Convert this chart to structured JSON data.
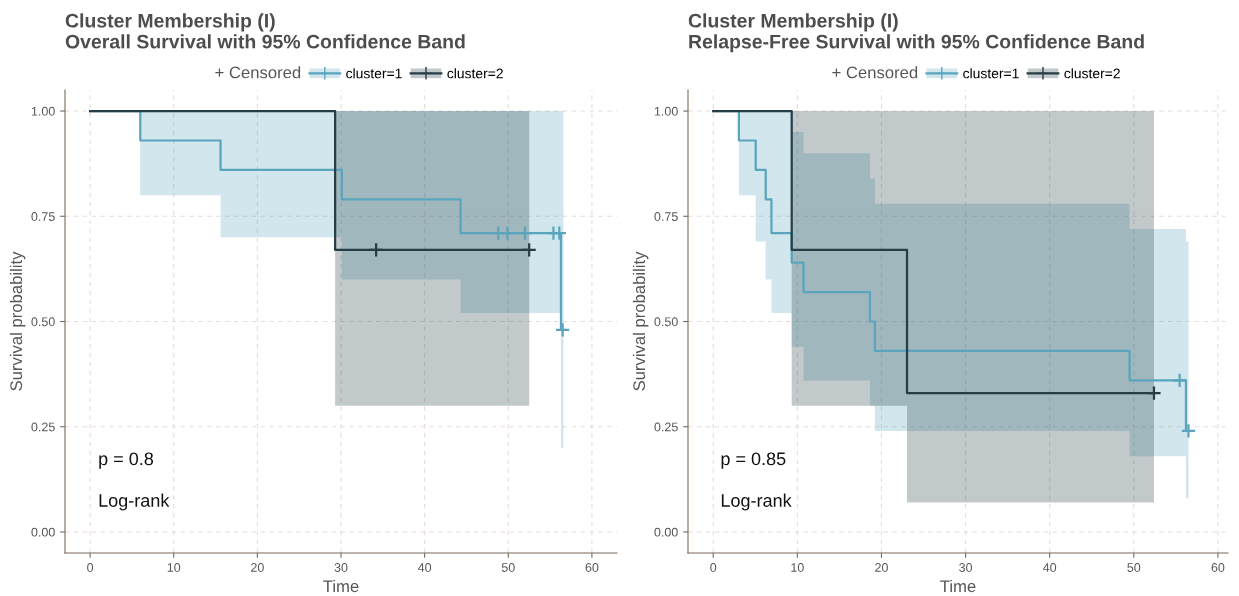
{
  "chart_data": [
    {
      "type": "step",
      "title": "Cluster Membership (I)\nOverall Survival with 95% Confidence Band",
      "xlabel": "Time",
      "ylabel": "Survival probability",
      "legend_title": "+ Censored",
      "legend": "top",
      "grid": true,
      "xlim": [
        -3,
        63
      ],
      "ylim": [
        -0.05,
        1.05
      ],
      "xticks": [
        0,
        10,
        20,
        30,
        40,
        50,
        60
      ],
      "yticks": [
        {
          "value": 0,
          "label": "0.00"
        },
        {
          "value": 0.25,
          "label": "0.25"
        },
        {
          "value": 0.5,
          "label": "0.50"
        },
        {
          "value": 0.75,
          "label": "0.75"
        },
        {
          "value": 1,
          "label": "1.00"
        }
      ],
      "annotations": [
        "p = 0.8",
        "Log-rank"
      ],
      "series": [
        {
          "name": "cluster=1",
          "color": "#5aa5bd",
          "marker": "none",
          "x": [
            0,
            6.0,
            15.6,
            30.1,
            44.3,
            56.3,
            56.6
          ],
          "values": [
            1,
            0.93,
            0.86,
            0.79,
            0.71,
            0.48,
            0.48
          ],
          "lower": [
            1,
            0.8,
            0.7,
            0.6,
            0.52,
            0.2,
            0.2
          ],
          "upper": [
            1,
            1,
            1,
            1,
            1,
            1,
            1
          ]
        },
        {
          "name": "cluster=2",
          "color": "#253d45",
          "marker": "none",
          "x": [
            0,
            29.3,
            52.5
          ],
          "values": [
            1,
            0.67,
            0.67
          ],
          "lower": [
            1,
            0.3,
            0.3
          ],
          "upper": [
            1,
            1,
            1
          ]
        },
        {
          "type": "scatter",
          "color": "#5aa5bd",
          "marker": "cross",
          "x": [
            48.8,
            49.9,
            52.0,
            55.4,
            56.1,
            56.5
          ],
          "values": [
            0.71,
            0.71,
            0.71,
            0.71,
            0.71,
            0.48
          ]
        },
        {
          "type": "scatter",
          "color": "#253d45",
          "marker": "cross",
          "x": [
            34.2,
            52.5
          ],
          "values": [
            0.67,
            0.67
          ]
        }
      ]
    },
    {
      "type": "step",
      "title": "Cluster Membership (I)\nRelapse-Free Survival with 95% Confidence Band",
      "xlabel": "Time",
      "ylabel": "Survival probability",
      "legend_title": "+ Censored",
      "legend": "top",
      "grid": true,
      "xlim": [
        -3,
        61.2
      ],
      "ylim": [
        -0.05,
        1.05
      ],
      "xticks": [
        0,
        10,
        20,
        30,
        40,
        50,
        60
      ],
      "yticks": [
        {
          "value": 0,
          "label": "0.00"
        },
        {
          "value": 0.25,
          "label": "0.25"
        },
        {
          "value": 0.5,
          "label": "0.50"
        },
        {
          "value": 0.75,
          "label": "0.75"
        },
        {
          "value": 1,
          "label": "1.00"
        }
      ],
      "annotations": [
        "p = 0.85",
        "Log-rank"
      ],
      "series": [
        {
          "name": "cluster=1",
          "color": "#5aa5bd",
          "marker": "none",
          "x": [
            0,
            3.05,
            5.05,
            6.24,
            6.92,
            9.33,
            10.73,
            18.63,
            19.22,
            49.5,
            56.2,
            56.5
          ],
          "values": [
            1,
            0.93,
            0.86,
            0.79,
            0.71,
            0.64,
            0.57,
            0.5,
            0.43,
            0.36,
            0.24,
            0.24
          ],
          "lower": [
            1,
            0.8,
            0.69,
            0.6,
            0.52,
            0.44,
            0.36,
            0.3,
            0.24,
            0.18,
            0.08,
            0.08
          ],
          "upper": [
            1,
            1,
            1,
            1,
            1,
            0.95,
            0.9,
            0.84,
            0.78,
            0.72,
            0.69,
            0.69
          ]
        },
        {
          "name": "cluster=2",
          "color": "#253d45",
          "marker": "none",
          "x": [
            0,
            9.33,
            23.04,
            52.4
          ],
          "values": [
            1,
            0.67,
            0.33,
            0.33
          ],
          "lower": [
            1,
            0.3,
            0.07,
            0.07
          ],
          "upper": [
            1,
            1,
            1,
            1
          ]
        },
        {
          "type": "scatter",
          "color": "#5aa5bd",
          "marker": "cross",
          "x": [
            55.45,
            56.5
          ],
          "values": [
            0.36,
            0.24
          ]
        },
        {
          "type": "scatter",
          "color": "#253d45",
          "marker": "cross",
          "x": [
            52.4
          ],
          "values": [
            0.33
          ]
        }
      ]
    }
  ]
}
